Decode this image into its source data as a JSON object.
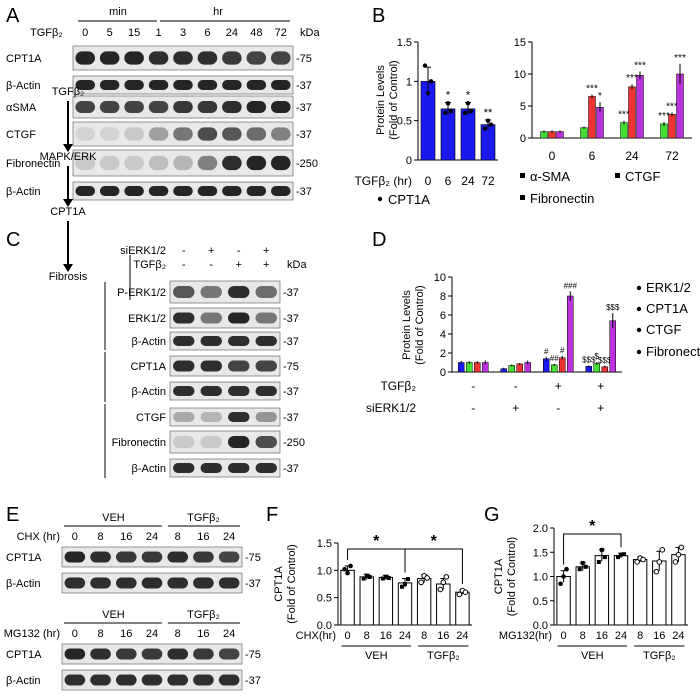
{
  "panel_letters": [
    "A",
    "B",
    "C",
    "D",
    "E",
    "F",
    "G"
  ],
  "colors": {
    "blue": "#1a1aee",
    "green": "#44dd33",
    "red": "#ee3333",
    "magenta": "#bb33dd",
    "band": "#1a1a1a",
    "blot_bg": "#e8e8e8"
  },
  "panel_A": {
    "treatment": "TGFβ₂",
    "unit_min": "min",
    "unit_hr": "hr",
    "timepoints": [
      "0",
      "5",
      "15",
      "1",
      "3",
      "6",
      "24",
      "48",
      "72"
    ],
    "kda_label": "kDa",
    "rows": [
      {
        "label": "CPT1A",
        "marker": "-75"
      },
      {
        "label": "β-Actin",
        "marker": "-37"
      },
      {
        "label": "αSMA",
        "marker": "-37"
      },
      {
        "label": "CTGF",
        "marker": "-37"
      },
      {
        "label": "Fibronectin",
        "marker": "-250"
      },
      {
        "label": "β-Actin",
        "marker": "-37"
      }
    ]
  },
  "panel_C": {
    "pathway": [
      "TGFβ₂",
      "MAPK/ERK",
      "CPT1A",
      "Fibrosis"
    ],
    "conditions": [
      {
        "label": "siERK1/2",
        "signs": [
          "-",
          "+",
          "-",
          "+"
        ]
      },
      {
        "label": "TGFβ₂",
        "signs": [
          "-",
          "-",
          "+",
          "+"
        ]
      }
    ],
    "kda_label": "kDa",
    "rows": [
      {
        "label": "P-ERK1/2",
        "marker": "-37"
      },
      {
        "label": "ERK1/2",
        "marker": "-37"
      },
      {
        "label": "β-Actin",
        "marker": "-37"
      },
      {
        "label": "CPT1A",
        "marker": "-75"
      },
      {
        "label": "β-Actin",
        "marker": "-37"
      },
      {
        "label": "CTGF",
        "marker": "-37"
      },
      {
        "label": "Fibronectin",
        "marker": "-250"
      },
      {
        "label": "β-Actin",
        "marker": "-37"
      }
    ]
  },
  "panel_E": {
    "blot1": {
      "cond_label": "CHX (hr)",
      "groups": [
        "VEH",
        "TGFβ₂"
      ],
      "timepoints": [
        "0",
        "8",
        "16",
        "24",
        "8",
        "16",
        "24"
      ],
      "rows": [
        {
          "label": "CPT1A",
          "marker": "-75"
        },
        {
          "label": "β-Actin",
          "marker": "-37"
        }
      ]
    },
    "blot2": {
      "cond_label": "MG132 (hr)",
      "groups": [
        "VEH",
        "TGFβ₂"
      ],
      "timepoints": [
        "0",
        "8",
        "16",
        "24",
        "8",
        "16",
        "24"
      ],
      "rows": [
        {
          "label": "CPT1A",
          "marker": "-75"
        },
        {
          "label": "β-Actin",
          "marker": "-37"
        }
      ]
    }
  },
  "chart_data": [
    {
      "id": "B1",
      "type": "bar",
      "ylabel": "Protein Levels\n(Fold of Control)",
      "x_title": "TGFβ₂ (hr)",
      "categories": [
        "0",
        "6",
        "24",
        "72"
      ],
      "ylim": [
        0,
        1.5
      ],
      "yticks": [
        0,
        0.5,
        1.0,
        1.5
      ],
      "series": [
        {
          "name": "CPT1A",
          "color": "#1a1aee",
          "values": [
            1.0,
            0.65,
            0.65,
            0.45
          ],
          "errors": [
            0.18,
            0.08,
            0.08,
            0.06
          ],
          "points": [
            [
              1.2,
              0.85,
              1.0
            ],
            [
              0.6,
              0.72,
              0.62
            ],
            [
              0.6,
              0.72,
              0.62
            ],
            [
              0.4,
              0.5,
              0.45
            ]
          ],
          "sig": [
            "",
            "*",
            "*",
            "**"
          ]
        }
      ],
      "legend": [
        "CPT1A"
      ]
    },
    {
      "id": "B2",
      "type": "bar",
      "categories": [
        "0",
        "6",
        "24",
        "72"
      ],
      "ylim": [
        0,
        15
      ],
      "yticks": [
        0,
        5,
        10,
        15
      ],
      "series": [
        {
          "name": "α-SMA",
          "color": "#44dd33",
          "values": [
            1.0,
            1.6,
            2.4,
            2.2
          ],
          "errors": [
            0.2,
            0.2,
            0.3,
            0.3
          ],
          "sig": [
            "",
            "",
            "***",
            "***"
          ]
        },
        {
          "name": "CTGF",
          "color": "#ee3333",
          "values": [
            1.0,
            6.5,
            8.0,
            3.7
          ],
          "errors": [
            0.2,
            0.3,
            0.4,
            0.3
          ],
          "sig": [
            "",
            "***",
            "***",
            "***"
          ]
        },
        {
          "name": "Fibronectin",
          "color": "#bb33dd",
          "values": [
            1.0,
            4.8,
            9.8,
            10.0
          ],
          "errors": [
            0.2,
            0.8,
            0.6,
            1.6
          ],
          "sig": [
            "",
            "*",
            "***",
            "***"
          ]
        }
      ],
      "legend": [
        "α-SMA",
        "CTGF",
        "Fibronectin"
      ]
    },
    {
      "id": "D",
      "type": "bar",
      "ylabel": "Protein Levels\n(Fold of Control)",
      "ylim": [
        0,
        10
      ],
      "yticks": [
        0,
        2,
        4,
        6,
        8,
        10
      ],
      "conditions": [
        {
          "label": "TGFβ₂",
          "signs": [
            "-",
            "-",
            "+",
            "+"
          ]
        },
        {
          "label": "siERK1/2",
          "signs": [
            "-",
            "+",
            "-",
            "+"
          ]
        }
      ],
      "series": [
        {
          "name": "ERK1/2",
          "color": "#1a1aee",
          "values": [
            1.0,
            0.35,
            1.4,
            0.6
          ],
          "errors": [
            0.15,
            0.1,
            0.2,
            0.1
          ],
          "sig": [
            "",
            "",
            "#",
            "$$$"
          ]
        },
        {
          "name": "CPT1A",
          "color": "#44dd33",
          "values": [
            1.0,
            0.7,
            0.75,
            0.9
          ],
          "errors": [
            0.15,
            0.1,
            0.1,
            0.15
          ],
          "sig": [
            "",
            "",
            "##",
            "$"
          ]
        },
        {
          "name": "CTGF",
          "color": "#ee3333",
          "values": [
            1.0,
            0.85,
            1.5,
            0.55
          ],
          "errors": [
            0.15,
            0.1,
            0.2,
            0.1
          ],
          "sig": [
            "",
            "",
            "#",
            "$$$"
          ]
        },
        {
          "name": "Fibronectin",
          "color": "#bb33dd",
          "values": [
            1.0,
            1.0,
            8.0,
            5.4
          ],
          "errors": [
            0.2,
            0.2,
            0.5,
            0.8
          ],
          "sig": [
            "",
            "",
            "###",
            "$$$"
          ]
        }
      ],
      "legend": [
        "ERK1/2",
        "CPT1A",
        "CTGF",
        "Fibronectin"
      ]
    },
    {
      "id": "F",
      "type": "bar",
      "ylabel": "CPT1A\n(Fold of Control)",
      "x_title": "CHX(hr)",
      "categories": [
        "0",
        "8",
        "16",
        "24",
        "8",
        "16",
        "24"
      ],
      "groups": [
        "VEH",
        "TGFβ₂"
      ],
      "ylim": [
        0,
        1.5
      ],
      "yticks": [
        "0.0",
        "0.5",
        "1.0",
        "1.5"
      ],
      "values": [
        1.0,
        0.88,
        0.87,
        0.77,
        0.85,
        0.75,
        0.6
      ],
      "errors": [
        0.08,
        0.05,
        0.04,
        0.08,
        0.07,
        0.1,
        0.04
      ],
      "points": [
        [
          1.02,
          0.95,
          1.08
        ],
        [
          0.85,
          0.9,
          0.88
        ],
        [
          0.85,
          0.88,
          0.86
        ],
        [
          0.7,
          0.75,
          0.84
        ],
        [
          0.78,
          0.9,
          0.86
        ],
        [
          0.65,
          0.78,
          0.88
        ],
        [
          0.56,
          0.63,
          0.6
        ]
      ],
      "significance": [
        {
          "from": 0,
          "to": 3,
          "label": "*"
        },
        {
          "from": 3,
          "to": 6,
          "label": "*"
        }
      ]
    },
    {
      "id": "G",
      "type": "bar",
      "ylabel": "CPT1A\n(Fold of Control)",
      "x_title": "MG132(hr)",
      "categories": [
        "0",
        "8",
        "16",
        "24",
        "8",
        "16",
        "24"
      ],
      "groups": [
        "VEH",
        "TGFβ₂"
      ],
      "ylim": [
        0,
        2.0
      ],
      "yticks": [
        "0.0",
        "0.5",
        "1.0",
        "1.5",
        "2.0"
      ],
      "values": [
        1.0,
        1.2,
        1.43,
        1.43,
        1.35,
        1.32,
        1.45
      ],
      "errors": [
        0.12,
        0.08,
        0.12,
        0.05,
        0.05,
        0.2,
        0.15
      ],
      "points": [
        [
          0.85,
          1.0,
          1.15
        ],
        [
          1.15,
          1.28,
          1.2
        ],
        [
          1.3,
          1.55,
          1.4
        ],
        [
          1.4,
          1.45,
          1.46
        ],
        [
          1.3,
          1.38,
          1.35
        ],
        [
          1.1,
          1.3,
          1.55
        ],
        [
          1.3,
          1.45,
          1.6
        ]
      ],
      "significance": [
        {
          "from": 0,
          "to": 3,
          "label": "*"
        }
      ]
    }
  ]
}
